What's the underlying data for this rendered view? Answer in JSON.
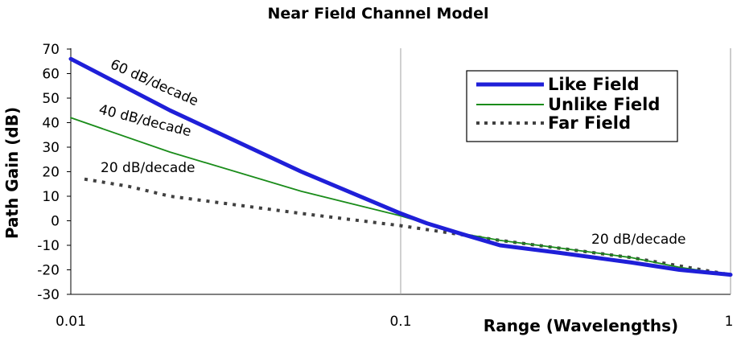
{
  "chart_data": {
    "type": "line",
    "title": "Near Field Channel Model",
    "xlabel": "Range (Wavelengths)",
    "ylabel": "Path Gain (dB)",
    "x_scale": "log",
    "xlim": [
      0.01,
      1
    ],
    "ylim": [
      -30,
      70
    ],
    "x_ticks": [
      "0.01",
      "0.1",
      "1"
    ],
    "y_ticks": [
      "70",
      "60",
      "50",
      "40",
      "30",
      "20",
      "10",
      "0",
      "-10",
      "-20",
      "-30"
    ],
    "grid": {
      "vertical_major": true,
      "horizontal": false
    },
    "legend_position": "top-right",
    "series": [
      {
        "name": "Like Field",
        "color": "#1f1fd8",
        "style": "thick-solid",
        "x": [
          0.01,
          0.02,
          0.05,
          0.1,
          0.12,
          0.15,
          0.2,
          0.3,
          0.5,
          0.7,
          1
        ],
        "y": [
          66,
          45,
          20,
          3,
          -1,
          -5,
          -10,
          -13,
          -17,
          -20,
          -22
        ]
      },
      {
        "name": "Unlike Field",
        "color": "#1a8c1a",
        "style": "thin-solid",
        "x": [
          0.01,
          0.02,
          0.05,
          0.1,
          0.15,
          0.2,
          0.3,
          0.5,
          0.7,
          1
        ],
        "y": [
          42,
          28,
          12,
          2,
          -5,
          -8,
          -11,
          -15,
          -19,
          -22
        ]
      },
      {
        "name": "Far Field",
        "color": "#404040",
        "style": "dotted",
        "x": [
          0.011,
          0.015,
          0.02,
          0.05,
          0.1,
          0.2,
          0.5,
          1
        ],
        "y": [
          17,
          14,
          10,
          3,
          -2,
          -8,
          -15,
          -22
        ]
      }
    ],
    "annotations": [
      {
        "text": "60 dB/decade"
      },
      {
        "text": "40 dB/decade"
      },
      {
        "text": "20 dB/decade"
      },
      {
        "text": "20 dB/decade"
      }
    ]
  }
}
